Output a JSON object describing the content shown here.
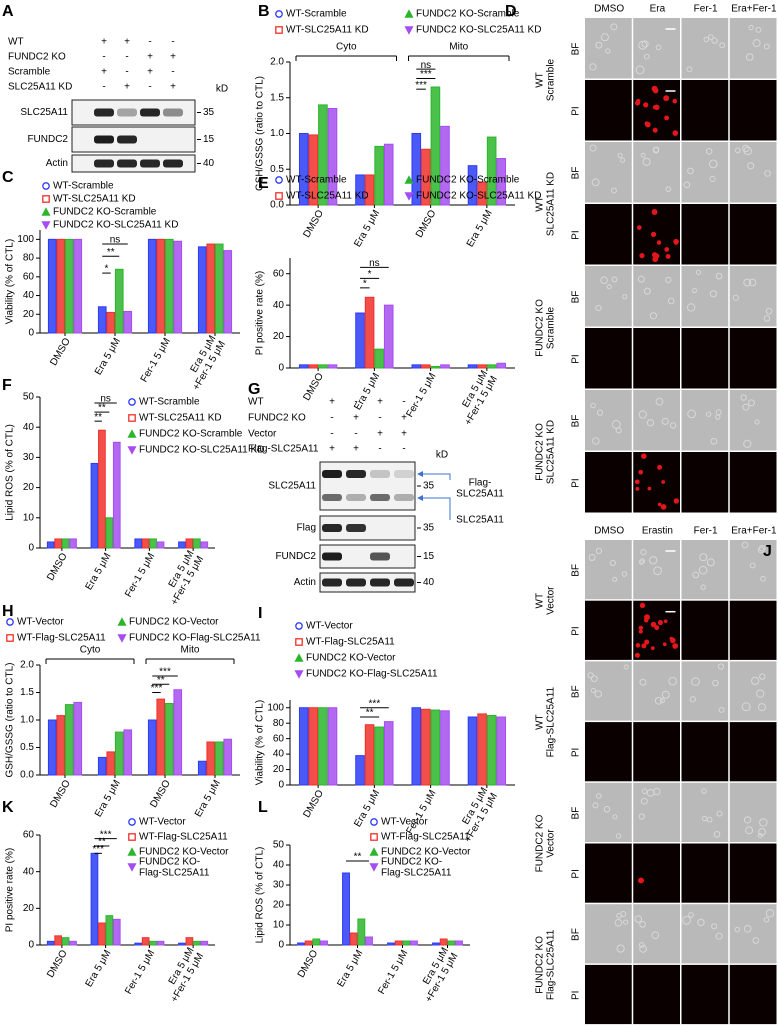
{
  "chart_data": [
    {
      "type": "bar",
      "panel": "B",
      "ylabel": "GSH/GSSG (ratio to CTL)",
      "legend": "top",
      "categories": [
        "DMSO",
        "Era 5 μM",
        "DMSO",
        "Era 5 μM"
      ],
      "groups": [
        "Cyto",
        "Mito"
      ],
      "ylim": [
        0,
        2
      ],
      "yticks": [
        {
          "value": 0,
          "label": "0.0"
        },
        0.5,
        {
          "value": 1,
          "label": "1.0"
        },
        1.5,
        {
          "value": 2,
          "label": "2.0"
        }
      ],
      "series": [
        {
          "name": "WT-Scramble",
          "color": "#2b3cf5",
          "values": [
            1.0,
            0.42,
            1.0,
            0.55
          ]
        },
        {
          "name": "WT-SLC25A11 KD",
          "color": "#f0302a",
          "values": [
            0.98,
            0.42,
            0.78,
            0.32
          ]
        },
        {
          "name": "FUNDC2 KO-Scramble",
          "color": "#2bb52b",
          "values": [
            1.4,
            0.82,
            1.65,
            0.95
          ]
        },
        {
          "name": "FUNDC2 KO-SLC25A11 KD",
          "color": "#a64df0",
          "values": [
            1.35,
            0.85,
            1.1,
            0.65
          ]
        }
      ],
      "annotations": [
        "ns",
        "***",
        "***"
      ]
    },
    {
      "type": "bar",
      "panel": "C",
      "ylabel": "Viability (% of CTL)",
      "legend": "top-left",
      "categories": [
        "DMSO",
        "Era 5 μM",
        "Fer-1 5 μM",
        "Era 5 μM\n+Fer-1 5 μM"
      ],
      "ylim": [
        0,
        110
      ],
      "yticks": [
        0,
        20,
        40,
        60,
        80,
        100
      ],
      "series": [
        {
          "name": "WT-Scramble",
          "color": "#2b3cf5",
          "values": [
            100,
            28,
            100,
            92
          ]
        },
        {
          "name": "WT-SLC25A11 KD",
          "color": "#f0302a",
          "values": [
            100,
            22,
            100,
            95
          ]
        },
        {
          "name": "FUNDC2 KO-Scramble",
          "color": "#2bb52b",
          "values": [
            100,
            68,
            100,
            95
          ]
        },
        {
          "name": "FUNDC2 KO-SLC25A11 KD",
          "color": "#a64df0",
          "values": [
            100,
            23,
            98,
            88
          ]
        }
      ],
      "annotations": [
        "ns",
        "**",
        "*"
      ]
    },
    {
      "type": "bar",
      "panel": "E",
      "ylabel": "PI positive rate (%)",
      "legend": "top",
      "categories": [
        "DMSO",
        "Era 5 μM",
        "Fer-1 5 μM",
        "Era 5 μM\n+Fer-1 5 μM"
      ],
      "ylim": [
        0,
        70
      ],
      "yticks": [
        0,
        20,
        40,
        60
      ],
      "series": [
        {
          "name": "WT-Scramble",
          "color": "#2b3cf5",
          "values": [
            2,
            35,
            2,
            2
          ]
        },
        {
          "name": "WT-SLC25A11 KD",
          "color": "#f0302a",
          "values": [
            2,
            45,
            2,
            2
          ]
        },
        {
          "name": "FUNDC2 KO-Scramble",
          "color": "#2bb52b",
          "values": [
            2,
            12,
            1,
            2
          ]
        },
        {
          "name": "FUNDC2 KO-SLC25A11 KD",
          "color": "#a64df0",
          "values": [
            2,
            40,
            2,
            3
          ]
        }
      ],
      "annotations": [
        "ns",
        "*",
        "*"
      ]
    },
    {
      "type": "bar",
      "panel": "F",
      "ylabel": "Lipid ROS (% of CTL)",
      "legend": "top-right",
      "categories": [
        "DMSO",
        "Era 5 μM",
        "Fer-1 5 μM",
        "Era 5 μM\n+Fer-1 5 μM"
      ],
      "ylim": [
        0,
        50
      ],
      "yticks": [
        0,
        10,
        20,
        30,
        40,
        50
      ],
      "series": [
        {
          "name": "WT-Scramble",
          "color": "#2b3cf5",
          "values": [
            2,
            28,
            3,
            2
          ]
        },
        {
          "name": "WT-SLC25A11 KD",
          "color": "#f0302a",
          "values": [
            3,
            39,
            3,
            3
          ]
        },
        {
          "name": "FUNDC2 KO-Scramble",
          "color": "#2bb52b",
          "values": [
            3,
            10,
            3,
            3
          ]
        },
        {
          "name": "FUNDC2 KO-SLC25A11 KD",
          "color": "#a64df0",
          "values": [
            3,
            35,
            2,
            2
          ]
        }
      ],
      "annotations": [
        "ns",
        "**",
        "**"
      ]
    },
    {
      "type": "bar",
      "panel": "H",
      "ylabel": "GSH/GSSG (ratio to CTL)",
      "legend": "top",
      "categories": [
        "DMSO",
        "Era 5 μM",
        "DMSO",
        "Era 5 μM"
      ],
      "groups": [
        "Cyto",
        "Mito"
      ],
      "ylim": [
        0,
        2
      ],
      "yticks": [
        {
          "value": 0,
          "label": "0.0"
        },
        0.5,
        {
          "value": 1,
          "label": "1.0"
        },
        1.5,
        {
          "value": 2,
          "label": "2.0"
        }
      ],
      "series": [
        {
          "name": "WT-Vector",
          "color": "#2b3cf5",
          "values": [
            1.0,
            0.32,
            1.0,
            0.25
          ]
        },
        {
          "name": "WT-Flag-SLC25A11",
          "color": "#f0302a",
          "values": [
            1.08,
            0.42,
            1.38,
            0.6
          ]
        },
        {
          "name": "FUNDC2 KO-Vector",
          "color": "#2bb52b",
          "values": [
            1.28,
            0.78,
            1.3,
            0.6
          ]
        },
        {
          "name": "FUNDC2 KO-Flag-SLC25A11",
          "color": "#a64df0",
          "values": [
            1.32,
            0.82,
            1.55,
            0.65
          ]
        }
      ],
      "annotations": [
        "***",
        "**",
        "***"
      ]
    },
    {
      "type": "bar",
      "panel": "I",
      "ylabel": "Viability (% of CTL)",
      "legend": "top-left",
      "categories": [
        "DMSO",
        "Era 5 μM",
        "Fer-1 5 μM",
        "Era 5 μM\n+Fer-1 5 μM"
      ],
      "ylim": [
        0,
        110
      ],
      "yticks": [
        0,
        20,
        40,
        60,
        80,
        100
      ],
      "series": [
        {
          "name": "WT-Vector",
          "color": "#2b3cf5",
          "values": [
            100,
            38,
            100,
            88
          ]
        },
        {
          "name": "WT-Flag-SLC25A11",
          "color": "#f0302a",
          "values": [
            100,
            78,
            98,
            92
          ]
        },
        {
          "name": "FUNDC2 KO-Vector",
          "color": "#2bb52b",
          "values": [
            100,
            75,
            97,
            90
          ]
        },
        {
          "name": "FUNDC2 KO-Flag-SLC25A11",
          "color": "#a64df0",
          "values": [
            100,
            82,
            96,
            88
          ]
        }
      ],
      "annotations": [
        "***",
        "**"
      ]
    },
    {
      "type": "bar",
      "panel": "K",
      "ylabel": "PI positive rate (%)",
      "legend": "top-right",
      "categories": [
        "DMSO",
        "Era 5 μM",
        "Fer-1 5 μM",
        "Era 5 μM\n+Fer-1 5 μM"
      ],
      "ylim": [
        0,
        60
      ],
      "yticks": [
        0,
        20,
        40,
        60
      ],
      "series": [
        {
          "name": "WT-Vector",
          "color": "#2b3cf5",
          "values": [
            2,
            50,
            1,
            1
          ]
        },
        {
          "name": "WT-Flag-SLC25A11",
          "color": "#f0302a",
          "values": [
            5,
            12,
            4,
            4
          ]
        },
        {
          "name": "FUNDC2 KO-Vector",
          "color": "#2bb52b",
          "values": [
            4,
            16,
            2,
            2
          ]
        },
        {
          "name": "FUNDC2 KO-\nFlag-SLC25A11",
          "color": "#a64df0",
          "values": [
            2,
            14,
            2,
            2
          ]
        }
      ],
      "annotations": [
        "***",
        "**",
        "***"
      ]
    },
    {
      "type": "bar",
      "panel": "L",
      "ylabel": "Lipid ROS (% of CTL)",
      "legend": "top-right",
      "categories": [
        "DMSO",
        "Era 5 μM",
        "Fer-1 5 μM",
        "Era 5 μM\n+Fer-1 5 μM"
      ],
      "ylim": [
        0,
        50
      ],
      "yticks": [
        0,
        10,
        20,
        30,
        40,
        50
      ],
      "series": [
        {
          "name": "WT-Vector",
          "color": "#2b3cf5",
          "values": [
            1,
            36,
            1,
            1
          ]
        },
        {
          "name": "WT-Flag-SLC25A11",
          "color": "#f0302a",
          "values": [
            2,
            6,
            2,
            3
          ]
        },
        {
          "name": "FUNDC2 KO-Vector",
          "color": "#2bb52b",
          "values": [
            3,
            13,
            2,
            2
          ]
        },
        {
          "name": "FUNDC2 KO-\nFlag-SLC25A11",
          "color": "#a64df0",
          "values": [
            2,
            4,
            2,
            2
          ]
        }
      ],
      "annotations": [
        "**"
      ]
    }
  ],
  "blots": [
    {
      "panel": "A",
      "conditions": [
        "WT",
        "FUNDC2 KO",
        "Scramble",
        "SLC25A11 KD"
      ],
      "signs": [
        [
          "+",
          "+",
          "-",
          "-"
        ],
        [
          "-",
          "-",
          "+",
          "+"
        ],
        [
          "+",
          "-",
          "+",
          "-"
        ],
        [
          "-",
          "+",
          "-",
          "+"
        ]
      ],
      "unit": "kD",
      "bands": [
        {
          "label": "SLC25A11",
          "marker": "35"
        },
        {
          "label": "FUNDC2",
          "marker": "15"
        },
        {
          "label": "Actin",
          "marker": "40"
        }
      ]
    },
    {
      "panel": "G",
      "conditions": [
        "WT",
        "FUNDC2 KO",
        "Vector",
        "Flag-SLC25A11"
      ],
      "signs": [
        [
          "+",
          "-",
          "+",
          "-"
        ],
        [
          "-",
          "+",
          "-",
          "+"
        ],
        [
          "-",
          "-",
          "+",
          "+"
        ],
        [
          "+",
          "+",
          "-",
          "-"
        ]
      ],
      "unit": "kD",
      "bands": [
        {
          "label": "SLC25A11",
          "marker": "35"
        },
        {
          "label": "Flag",
          "marker": "35"
        },
        {
          "label": "FUNDC2",
          "marker": "15"
        },
        {
          "label": "Actin",
          "marker": "40"
        }
      ],
      "arrows": [
        "Flag-\nSLC25A11",
        "SLC25A11"
      ]
    }
  ],
  "micrographs": [
    {
      "panel": "D",
      "columns": [
        "DMSO",
        "Era",
        "Fer-1",
        "Era+Fer-1"
      ],
      "channels": [
        "BF",
        "PI"
      ],
      "groups": [
        "WT\nScramble",
        "WT\nSLC25A11 KD",
        "FUNDC2 KO\nScramble",
        "FUNDC2 KO\nSLC25A11 KD"
      ]
    },
    {
      "panel": "J",
      "columns": [
        "DMSO",
        "Erastin",
        "Fer-1",
        "Era+Fer-1"
      ],
      "channels": [
        "BF",
        "PI"
      ],
      "groups": [
        "WT\nVector",
        "WT\nFlag-SLC25A11",
        "FUNDC2 KO\nVector",
        "FUNDC2 KO\nFlag-SLC25A11"
      ]
    }
  ]
}
